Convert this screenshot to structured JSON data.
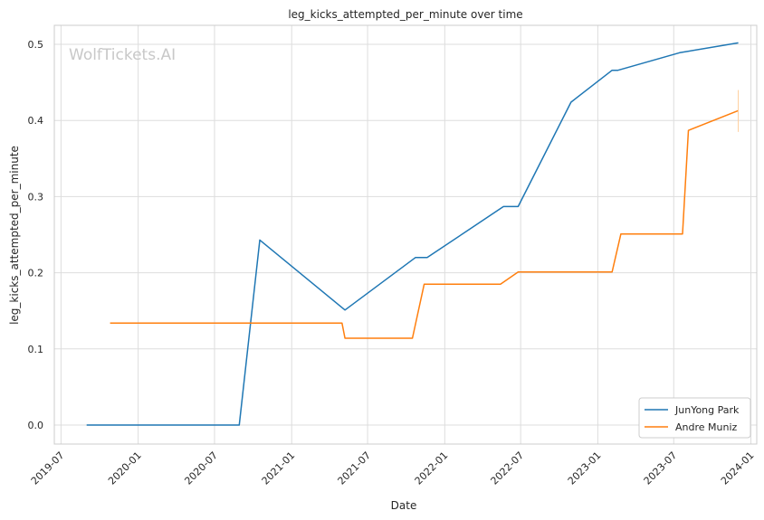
{
  "watermark": "WolfTickets.AI",
  "chart_data": {
    "type": "line",
    "title": "leg_kicks_attempted_per_minute over time",
    "xlabel": "Date",
    "ylabel": "leg_kicks_attempted_per_minute",
    "ylim": [
      -0.025,
      0.525
    ],
    "xlim": [
      "2019-06-15",
      "2024-01-15"
    ],
    "grid": true,
    "legend_position": "lower right",
    "x_ticks": [
      {
        "date": "2019-07-01",
        "label": "2019-07"
      },
      {
        "date": "2020-01-01",
        "label": "2020-01"
      },
      {
        "date": "2020-07-01",
        "label": "2020-07"
      },
      {
        "date": "2021-01-01",
        "label": "2021-01"
      },
      {
        "date": "2021-07-01",
        "label": "2021-07"
      },
      {
        "date": "2022-01-01",
        "label": "2022-01"
      },
      {
        "date": "2022-07-01",
        "label": "2022-07"
      },
      {
        "date": "2023-01-01",
        "label": "2023-01"
      },
      {
        "date": "2023-07-01",
        "label": "2023-07"
      },
      {
        "date": "2024-01-01",
        "label": "2024-01"
      }
    ],
    "y_ticks": [
      {
        "value": 0.0,
        "label": "0.0"
      },
      {
        "value": 0.1,
        "label": "0.1"
      },
      {
        "value": 0.2,
        "label": "0.2"
      },
      {
        "value": 0.3,
        "label": "0.3"
      },
      {
        "value": 0.4,
        "label": "0.4"
      },
      {
        "value": 0.5,
        "label": "0.5"
      }
    ],
    "series": [
      {
        "name": "JunYong Park",
        "color": "#1f77b4",
        "points": [
          [
            "2019-08-31",
            0.0
          ],
          [
            "2020-08-29",
            0.0
          ],
          [
            "2020-10-17",
            0.243
          ],
          [
            "2021-05-08",
            0.151
          ],
          [
            "2021-10-23",
            0.22
          ],
          [
            "2021-11-20",
            0.22
          ],
          [
            "2022-05-21",
            0.287
          ],
          [
            "2022-06-25",
            0.287
          ],
          [
            "2022-10-29",
            0.424
          ],
          [
            "2023-02-04",
            0.466
          ],
          [
            "2023-02-18",
            0.466
          ],
          [
            "2023-07-15",
            0.489
          ],
          [
            "2023-12-02",
            0.502
          ]
        ]
      },
      {
        "name": "Andre Muniz",
        "color": "#ff7f0e",
        "points": [
          [
            "2019-10-26",
            0.134
          ],
          [
            "2021-05-01",
            0.134
          ],
          [
            "2021-05-08",
            0.114
          ],
          [
            "2021-10-16",
            0.114
          ],
          [
            "2021-11-13",
            0.185
          ],
          [
            "2022-05-14",
            0.185
          ],
          [
            "2022-06-25",
            0.201
          ],
          [
            "2023-02-04",
            0.201
          ],
          [
            "2023-02-25",
            0.251
          ],
          [
            "2023-07-22",
            0.251
          ],
          [
            "2023-08-05",
            0.387
          ],
          [
            "2023-12-02",
            0.413
          ]
        ]
      }
    ]
  }
}
